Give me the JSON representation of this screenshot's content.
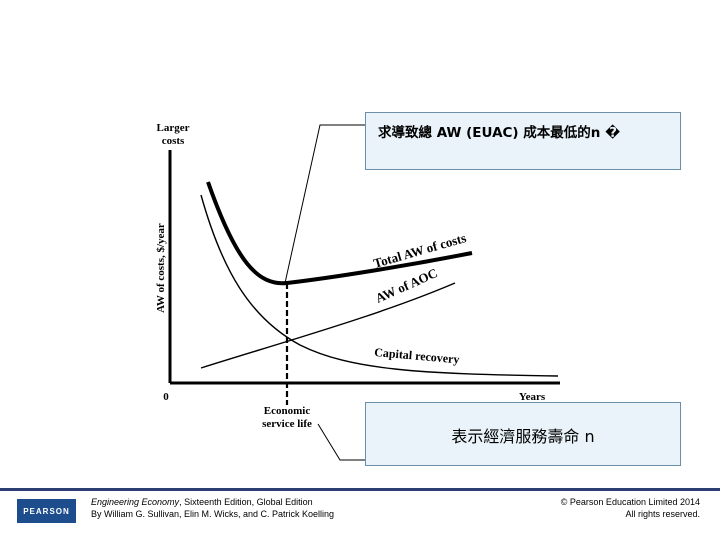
{
  "diagram": {
    "y_axis_top_label_line1": "Larger",
    "y_axis_top_label_line2": "costs",
    "y_axis_label": "AW of costs, $/year",
    "origin_label": "0",
    "x_axis_label": "Years",
    "economic_label_line1": "Economic",
    "economic_label_line2": "service life",
    "curve_total_label": "Total AW of costs",
    "curve_aoc_label": "AW of AOC",
    "curve_capital_label": "Capital recovery"
  },
  "callouts": {
    "top_text": "求導致總 AW (EUAC) 成本最低的n �",
    "bottom_text": "表示經濟服務壽命  n"
  },
  "footer": {
    "logo_text": "PEARSON",
    "book_title": "Engineering Economy",
    "book_edition": ", Sixteenth Edition, Global Edition",
    "authors": "By William G. Sullivan, Elin M. Wicks, and C. Patrick Koelling",
    "copyright": "© Pearson Education Limited 2014",
    "rights": "All rights reserved."
  },
  "colors": {
    "callout_fill": "#e9f3f9",
    "callout_border": "#6b8fa6",
    "footer_rule": "#2d3e73",
    "logo_fill": "#1d4d8c"
  }
}
